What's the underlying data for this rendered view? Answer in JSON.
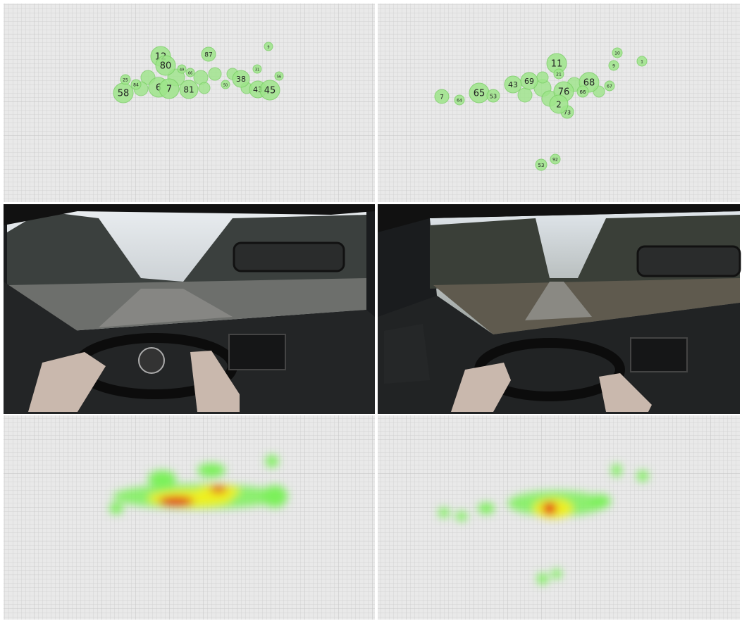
{
  "left_panel": {
    "fixations": [
      "12",
      "80",
      "87",
      "9",
      "58",
      "6",
      "7",
      "81",
      "38",
      "43",
      "45",
      "25",
      "84",
      "49",
      "66",
      "50",
      "56",
      "31"
    ]
  },
  "right_panel": {
    "fixations": [
      "11",
      "10",
      "9",
      "1",
      "7",
      "64",
      "65",
      "53",
      "43",
      "69",
      "76",
      "68",
      "67",
      "73",
      "2",
      "53",
      "92",
      "21",
      "66"
    ]
  }
}
